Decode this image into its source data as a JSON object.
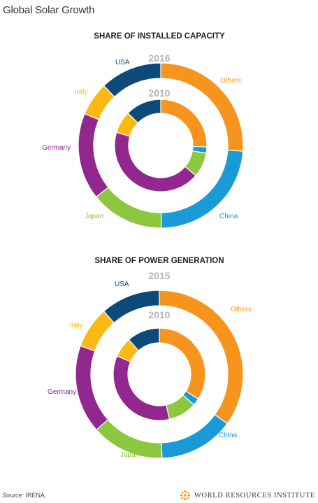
{
  "page": {
    "title": "Global Solar Growth",
    "source_label": "Source:",
    "source_value": "IRENA.",
    "logo_text": "WORLD RESOURCES INSTITUTE"
  },
  "colors": {
    "Others": "#f7941d",
    "China": "#1a9ad6",
    "Japan": "#8dc63f",
    "Germany": "#92278f",
    "Italy": "#fdb913",
    "USA": "#0d4a7a"
  },
  "chart_data": [
    {
      "type": "donut",
      "title": "SHARE OF INSTALLED CAPACITY",
      "categories": [
        "Others",
        "China",
        "Japan",
        "Germany",
        "Italy",
        "USA"
      ],
      "series": [
        {
          "name": "2016",
          "ring": "outer",
          "values": [
            26.1,
            23.8,
            14.4,
            17.0,
            6.6,
            12.1
          ]
        },
        {
          "name": "2010",
          "ring": "inner",
          "values": [
            25.5,
            2.2,
            8.6,
            43.3,
            7.8,
            12.6
          ]
        }
      ]
    },
    {
      "type": "donut",
      "title": "SHARE OF POWER GENERATION",
      "categories": [
        "Others",
        "China",
        "Japan",
        "Germany",
        "Italy",
        "USA"
      ],
      "series": [
        {
          "name": "2015",
          "ring": "outer",
          "values": [
            35.0,
            14.5,
            14.0,
            17.0,
            8.0,
            11.5
          ]
        },
        {
          "name": "2010",
          "ring": "inner",
          "values": [
            34.0,
            2.5,
            10.0,
            35.0,
            7.0,
            11.5
          ]
        }
      ]
    }
  ]
}
